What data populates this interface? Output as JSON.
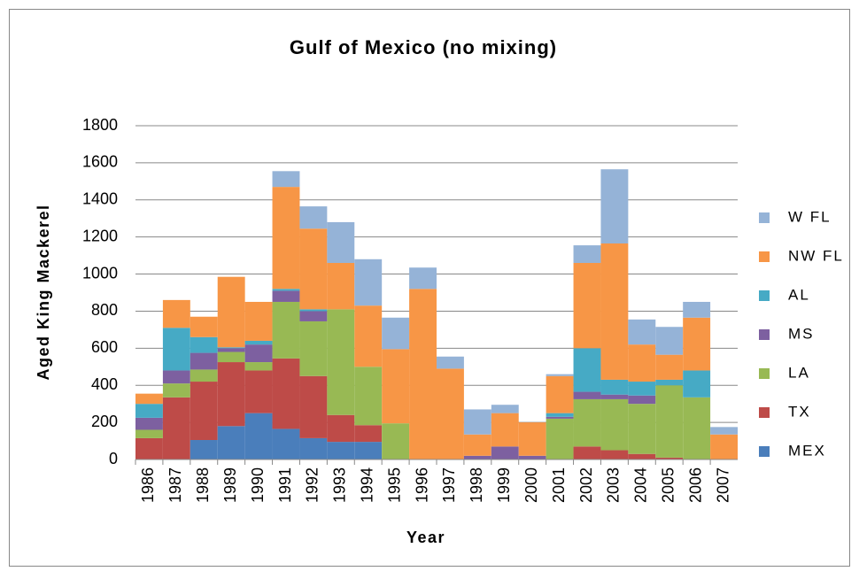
{
  "chart_data": {
    "type": "stacked_bar",
    "title": "Gulf of Mexico (no mixing)",
    "x_label": "Year",
    "y_label": "Aged King Mackerel",
    "categories": [
      "1986",
      "1987",
      "1988",
      "1989",
      "1990",
      "1991",
      "1992",
      "1993",
      "1994",
      "1995",
      "1996",
      "1997",
      "1998",
      "1999",
      "2000",
      "2001",
      "2002",
      "2003",
      "2004",
      "2005",
      "2006",
      "2007"
    ],
    "series": [
      {
        "name": "MEX",
        "color": "#4a7ebb",
        "values": [
          0,
          0,
          105,
          180,
          250,
          165,
          115,
          95,
          95,
          0,
          0,
          0,
          0,
          0,
          0,
          0,
          0,
          0,
          0,
          0,
          0,
          0
        ]
      },
      {
        "name": "TX",
        "color": "#be4b48",
        "values": [
          115,
          335,
          315,
          345,
          230,
          380,
          335,
          145,
          90,
          0,
          0,
          0,
          0,
          0,
          0,
          0,
          70,
          50,
          30,
          10,
          0,
          0
        ]
      },
      {
        "name": "LA",
        "color": "#98b954",
        "values": [
          45,
          75,
          65,
          55,
          45,
          305,
          295,
          570,
          315,
          195,
          0,
          0,
          0,
          0,
          0,
          220,
          255,
          275,
          270,
          390,
          335,
          0
        ]
      },
      {
        "name": "MS",
        "color": "#7d60a0",
        "values": [
          65,
          70,
          90,
          20,
          95,
          60,
          55,
          0,
          0,
          0,
          0,
          0,
          20,
          70,
          20,
          10,
          40,
          25,
          45,
          0,
          0,
          0
        ]
      },
      {
        "name": "AL",
        "color": "#46aac5",
        "values": [
          75,
          230,
          85,
          5,
          20,
          10,
          10,
          0,
          0,
          0,
          0,
          0,
          0,
          0,
          0,
          20,
          235,
          80,
          75,
          30,
          145,
          0
        ]
      },
      {
        "name": "NW FL",
        "color": "#f79646",
        "values": [
          55,
          150,
          110,
          380,
          210,
          550,
          435,
          250,
          330,
          400,
          920,
          490,
          115,
          180,
          180,
          200,
          460,
          735,
          200,
          135,
          285,
          135
        ]
      },
      {
        "name": "W FL",
        "color": "#95b3d7",
        "values": [
          0,
          0,
          0,
          0,
          0,
          85,
          120,
          220,
          250,
          170,
          115,
          65,
          135,
          45,
          0,
          10,
          95,
          400,
          135,
          150,
          85,
          40
        ]
      }
    ],
    "ylim": [
      0,
      1800
    ],
    "yticks": [
      0,
      200,
      400,
      600,
      800,
      1000,
      1200,
      1400,
      1600,
      1800
    ],
    "grid": true,
    "legend": "right"
  }
}
